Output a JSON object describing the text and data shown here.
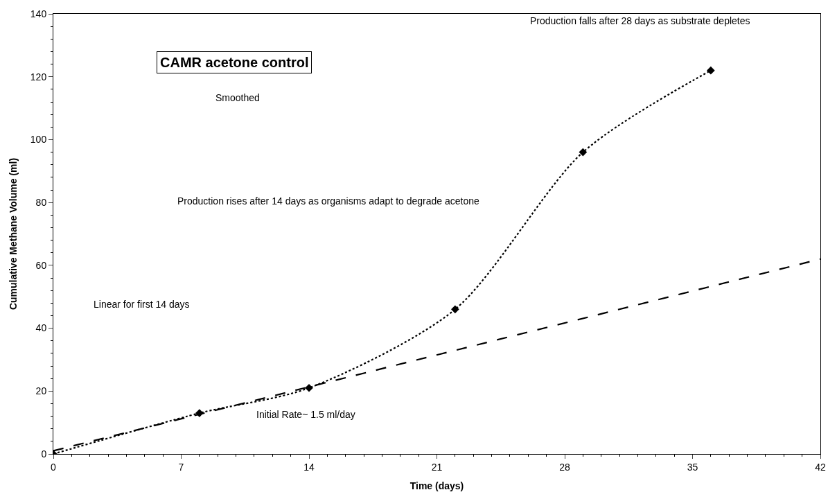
{
  "chart_data": {
    "type": "line",
    "title": "CAMR acetone control",
    "xlabel": "Time (days)",
    "ylabel": "Cumulative Methane Volume (ml)",
    "xlim": [
      0,
      42
    ],
    "xticks": [
      0,
      7,
      14,
      21,
      28,
      35,
      42
    ],
    "ylim": [
      0,
      140
    ],
    "yticks": [
      0,
      20,
      40,
      60,
      80,
      100,
      120,
      140
    ],
    "series": [
      {
        "x": [
          0,
          8,
          14,
          22,
          29,
          36
        ],
        "values": [
          0,
          13,
          21,
          46,
          96,
          122
        ],
        "color": "#000000",
        "line_style": "dotted",
        "marker": "diamond"
      },
      {
        "x": [
          0,
          42
        ],
        "values": [
          1,
          62
        ],
        "color": "#000000",
        "line_style": "dashed",
        "marker": "none"
      }
    ],
    "annotations": [
      "Smoothed",
      "Production rises after 14 days as organisms adapt to degrade acetone",
      "Production falls after 28 days as substrate depletes",
      "Linear for first 14 days",
      "Initial Rate~ 1.5 ml/day"
    ]
  }
}
